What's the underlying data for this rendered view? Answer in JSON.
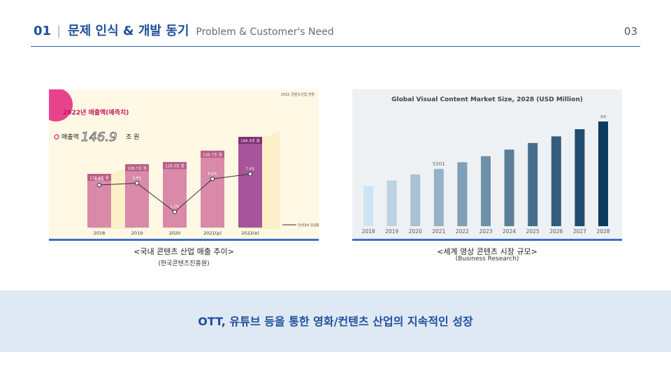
{
  "header": {
    "number": "01",
    "bar": "|",
    "title": "문제 인식 & 개발 동기",
    "subtitle": "Problem & Customer's Need",
    "page": "03"
  },
  "left_chart": {
    "badge_year": "2022년 매출액(예측치)",
    "source_corner": "2022 콘텐츠산업 전망",
    "sales_label": "매출액",
    "sales_value": "146.9",
    "sales_unit": "조 원",
    "legend_label": "전년대비 증감률",
    "caption": "<국내 콘텐츠 산업 매출 추이>",
    "source": "(한국콘텐츠진흥원)",
    "colors": {
      "bar": "#d98aa8",
      "bar_highlight": "#a8549a",
      "badge": "#e8438a"
    },
    "chart_data": {
      "type": "bar",
      "categories": [
        "2018",
        "2019",
        "2020",
        "2021(p)",
        "2022(e)"
      ],
      "values": [
        119.6,
        126.7,
        128.3,
        136.7,
        146.9
      ],
      "value_labels": [
        "119.6조 원",
        "126.7조 원",
        "128.3조 원",
        "136.7조 원",
        "146.9조 원"
      ],
      "growth": [
        5.6,
        5.9,
        1.2,
        6.6,
        7.4
      ],
      "growth_labels": [
        "5.6%",
        "5.9%",
        "1.2%",
        "6.6%",
        "7.4%"
      ]
    }
  },
  "right_chart": {
    "title": "Global Visual Content Market Size, 2028 (USD Million)",
    "caption": "<세계 영상 콘텐츠 시장 규모>",
    "source": "(Business Research)",
    "colors": {
      "light": "#cfe4f2",
      "dark": "#0d3b5e"
    },
    "chart_data": {
      "type": "bar",
      "categories": [
        "2018",
        "2019",
        "2020",
        "2021",
        "2022",
        "2023",
        "2024",
        "2025",
        "2026",
        "2027",
        "2028"
      ],
      "values": [
        3650,
        4150,
        4700,
        5201,
        5800,
        6350,
        6950,
        7550,
        8150,
        8800,
        9500
      ],
      "annotations": [
        {
          "category": "2021",
          "text": "5201"
        },
        {
          "category": "2028",
          "text": "xx"
        }
      ]
    }
  },
  "footer": {
    "message": "OTT, 유튜브 등을 통한 영화/컨텐츠 산업의 지속적인 성장"
  }
}
